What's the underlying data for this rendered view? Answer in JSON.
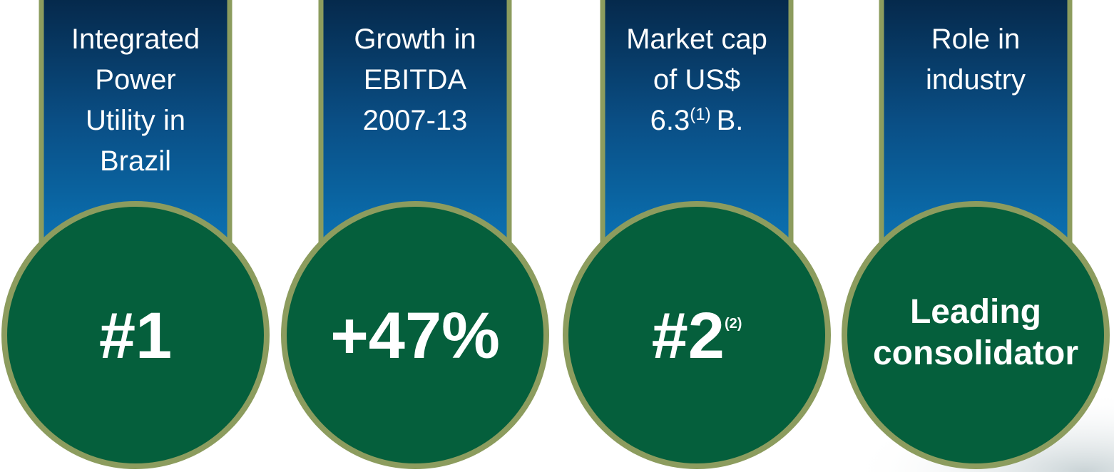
{
  "cards": [
    {
      "label_lines": [
        "Integrated",
        "Power",
        "Utility in",
        "Brazil"
      ],
      "value_lines": [
        "#1"
      ]
    },
    {
      "label_lines": [
        "Growth in",
        "EBITDA",
        "2007-13"
      ],
      "value_lines": [
        "+47%"
      ]
    },
    {
      "label_lines": [
        "Market cap",
        "of US$",
        {
          "text": "6.3",
          "sup": "(1)",
          "after": "B."
        }
      ],
      "value_lines": [
        {
          "text": "#2",
          "sup": "(2)"
        }
      ]
    },
    {
      "label_lines": [
        "Role in",
        "industry"
      ],
      "value_lines": [
        "Leading",
        "consolidator"
      ]
    }
  ]
}
